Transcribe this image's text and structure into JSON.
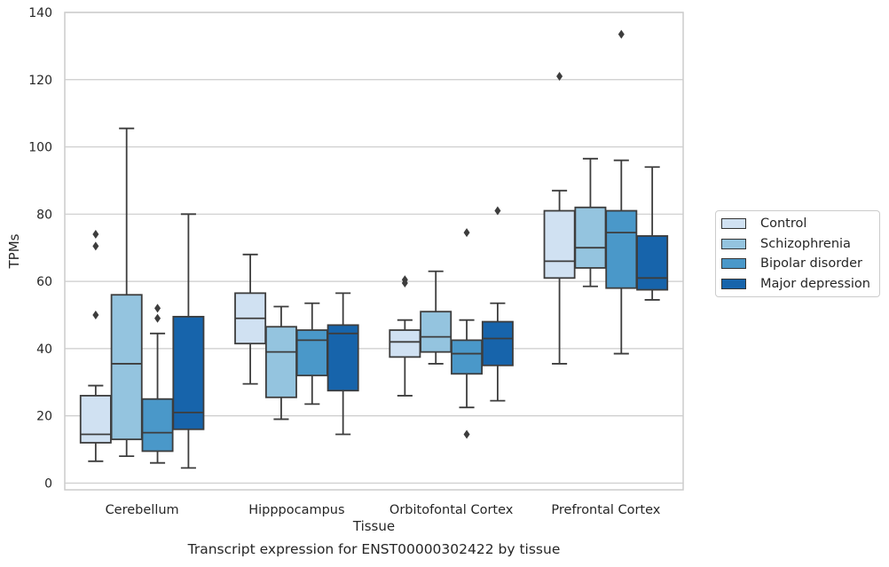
{
  "chart_data": {
    "type": "box",
    "xlabel": "Tissue",
    "ylabel": "TPMs",
    "caption": "Transcript expression for ENST00000302422 by tissue",
    "ylim": [
      -2,
      140
    ],
    "yticks": [
      0,
      20,
      40,
      60,
      80,
      100,
      120,
      140
    ],
    "grid": "horizontal",
    "legend_position": "right",
    "categories": [
      "Cerebellum",
      "Hipppocampus",
      "Orbitofontal Cortex",
      "Prefrontal Cortex"
    ],
    "series": [
      {
        "name": "Control",
        "color": "#d0e1f2",
        "boxes": [
          {
            "whisker_low": 6.5,
            "q1": 12,
            "median": 14.5,
            "q3": 26,
            "whisker_high": 29,
            "outliers": [
              50,
              70.5,
              74
            ]
          },
          {
            "whisker_low": 29.5,
            "q1": 41.5,
            "median": 49,
            "q3": 56.5,
            "whisker_high": 68,
            "outliers": []
          },
          {
            "whisker_low": 26,
            "q1": 37.5,
            "median": 42,
            "q3": 45.5,
            "whisker_high": 48.5,
            "outliers": [
              59.5,
              60.5
            ]
          },
          {
            "whisker_low": 35.5,
            "q1": 61,
            "median": 66,
            "q3": 81,
            "whisker_high": 87,
            "outliers": [
              121
            ]
          }
        ]
      },
      {
        "name": "Schizophrenia",
        "color": "#94c4df",
        "boxes": [
          {
            "whisker_low": 8,
            "q1": 13,
            "median": 35.5,
            "q3": 56,
            "whisker_high": 105.5,
            "outliers": []
          },
          {
            "whisker_low": 19,
            "q1": 25.5,
            "median": 39,
            "q3": 46.5,
            "whisker_high": 52.5,
            "outliers": []
          },
          {
            "whisker_low": 35.5,
            "q1": 39,
            "median": 43.5,
            "q3": 51,
            "whisker_high": 63,
            "outliers": []
          },
          {
            "whisker_low": 58.5,
            "q1": 64,
            "median": 70,
            "q3": 82,
            "whisker_high": 96.5,
            "outliers": []
          }
        ]
      },
      {
        "name": "Bipolar disorder",
        "color": "#4a98c9",
        "boxes": [
          {
            "whisker_low": 6,
            "q1": 9.5,
            "median": 15,
            "q3": 25,
            "whisker_high": 44.5,
            "outliers": [
              49,
              52
            ]
          },
          {
            "whisker_low": 23.5,
            "q1": 32,
            "median": 42.5,
            "q3": 45.5,
            "whisker_high": 53.5,
            "outliers": []
          },
          {
            "whisker_low": 22.5,
            "q1": 32.5,
            "median": 38.5,
            "q3": 42.5,
            "whisker_high": 48.5,
            "outliers": [
              14.5,
              74.5
            ]
          },
          {
            "whisker_low": 38.5,
            "q1": 58,
            "median": 74.5,
            "q3": 81,
            "whisker_high": 96,
            "outliers": [
              133.5
            ]
          }
        ]
      },
      {
        "name": "Major depression",
        "color": "#1764ab",
        "boxes": [
          {
            "whisker_low": 4.5,
            "q1": 16,
            "median": 21,
            "q3": 49.5,
            "whisker_high": 80,
            "outliers": []
          },
          {
            "whisker_low": 14.5,
            "q1": 27.5,
            "median": 44.5,
            "q3": 47,
            "whisker_high": 56.5,
            "outliers": []
          },
          {
            "whisker_low": 24.5,
            "q1": 35,
            "median": 43,
            "q3": 48,
            "whisker_high": 53.5,
            "outliers": [
              81
            ]
          },
          {
            "whisker_low": 54.5,
            "q1": 57.5,
            "median": 61,
            "q3": 73.5,
            "whisker_high": 94,
            "outliers": []
          }
        ]
      }
    ]
  }
}
